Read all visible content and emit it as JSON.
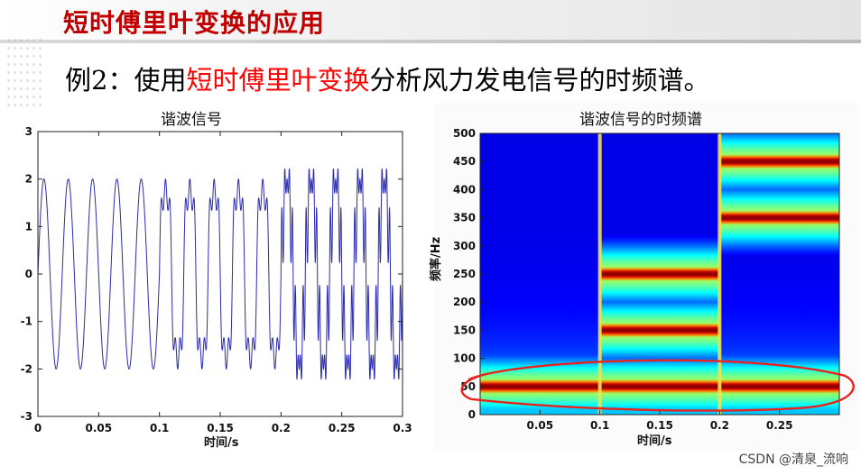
{
  "slide": {
    "title": "短时傅里叶变换的应用",
    "subtitle_prefix": "例2：使用",
    "subtitle_highlight": "短时傅里叶变换",
    "subtitle_suffix": "分析风力发电信号的时频谱。",
    "watermark": "CSDN @清泉_流响"
  },
  "colors": {
    "title_red": "#c00000",
    "highlight_red": "#ff0000",
    "signal_line": "#2b2bb0",
    "annotation_red": "#e8231d"
  },
  "chart_data": [
    {
      "type": "line",
      "title": "谐波信号",
      "xlabel": "时间/s",
      "ylabel": "",
      "xlim": [
        0,
        0.3
      ],
      "ylim": [
        -3,
        3
      ],
      "xticks": [
        0,
        0.05,
        0.1,
        0.15,
        0.2,
        0.25,
        0.3
      ],
      "xtick_labels": [
        "0",
        "0.05",
        "0.1",
        "0.15",
        "0.2",
        "0.25",
        "0.3"
      ],
      "yticks": [
        -3,
        -2,
        -1,
        0,
        1,
        2,
        3
      ],
      "ytick_labels": [
        "-3",
        "-2",
        "-1",
        "0",
        "1",
        "2",
        "3"
      ],
      "grid": false,
      "segments": [
        {
          "t_start": 0.0,
          "t_end": 0.1,
          "components": [
            {
              "amplitude": 2,
              "frequency_hz": 50
            }
          ]
        },
        {
          "t_start": 0.1,
          "t_end": 0.2,
          "components": [
            {
              "amplitude": 2,
              "frequency_hz": 50
            },
            {
              "amplitude": 0.4,
              "frequency_hz": 150
            },
            {
              "amplitude": 0.4,
              "frequency_hz": 250
            }
          ]
        },
        {
          "t_start": 0.2,
          "t_end": 0.3,
          "components": [
            {
              "amplitude": 2,
              "frequency_hz": 50
            },
            {
              "amplitude": 0.5,
              "frequency_hz": 350
            },
            {
              "amplitude": 0.5,
              "frequency_hz": 450
            }
          ]
        }
      ]
    },
    {
      "type": "heatmap",
      "title": "谐波信号的时频谱",
      "xlabel": "时间/s",
      "ylabel": "频率/Hz",
      "xlim": [
        0,
        0.3
      ],
      "ylim": [
        0,
        500
      ],
      "xticks": [
        0.05,
        0.1,
        0.15,
        0.2,
        0.25
      ],
      "xtick_labels": [
        "0.05",
        "0.1",
        "0.15",
        "0.2",
        "0.25"
      ],
      "yticks": [
        0,
        50,
        100,
        150,
        200,
        250,
        300,
        350,
        400,
        450,
        500
      ],
      "ytick_labels": [
        "0",
        "50",
        "100",
        "150",
        "200",
        "250",
        "300",
        "350",
        "400",
        "450",
        "500"
      ],
      "segment_boundaries_s": [
        0.1,
        0.2
      ],
      "segments": [
        {
          "t_start": 0.0,
          "t_end": 0.1,
          "peak_frequencies_hz": [
            50
          ]
        },
        {
          "t_start": 0.1,
          "t_end": 0.2,
          "peak_frequencies_hz": [
            50,
            150,
            250
          ]
        },
        {
          "t_start": 0.2,
          "t_end": 0.3,
          "peak_frequencies_hz": [
            50,
            350,
            450
          ]
        }
      ],
      "annotation": {
        "type": "ellipse",
        "color": "#e8231d",
        "highlights_frequency_hz": 50
      }
    }
  ]
}
